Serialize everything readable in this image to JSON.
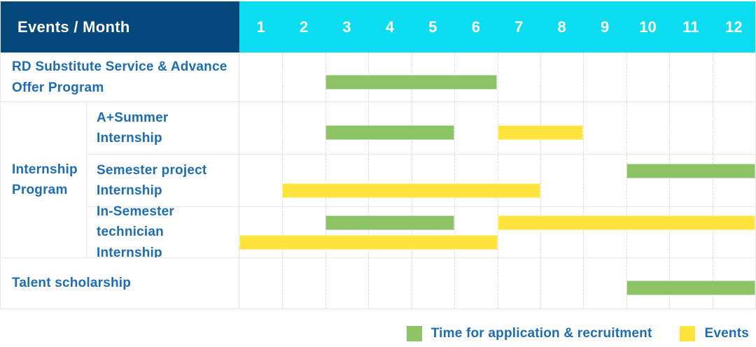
{
  "header": {
    "title": "Events / Month",
    "months": [
      "1",
      "2",
      "3",
      "4",
      "5",
      "6",
      "7",
      "8",
      "9",
      "10",
      "11",
      "12"
    ]
  },
  "colors": {
    "header_bg": "#05497c",
    "months_bg": "#0bdcf0",
    "application": "#8bc366",
    "events": "#ffe43e",
    "label_text": "#1e6cb2"
  },
  "rows": [
    {
      "type": "simple",
      "label": "RD Substitute Service & Advance Offer Program",
      "bars": [
        {
          "kind": "application",
          "start": 3,
          "end": 6,
          "lane": "single"
        }
      ]
    },
    {
      "type": "grouped",
      "group": "Internship Program",
      "children": [
        {
          "label": "A+Summer Internship",
          "bars": [
            {
              "kind": "application",
              "start": 3,
              "end": 5,
              "lane": "single"
            },
            {
              "kind": "events",
              "start": 7,
              "end": 8,
              "lane": "single"
            }
          ]
        },
        {
          "label": "Semester project Internship",
          "bars": [
            {
              "kind": "application",
              "start": 10,
              "end": 12,
              "lane": "top"
            },
            {
              "kind": "events",
              "start": 2,
              "end": 7,
              "lane": "bottom"
            }
          ]
        },
        {
          "label": "In-Semester technician Internship",
          "bars": [
            {
              "kind": "application",
              "start": 3,
              "end": 5,
              "lane": "top"
            },
            {
              "kind": "events",
              "start": 7,
              "end": 12,
              "lane": "top"
            },
            {
              "kind": "events",
              "start": 1,
              "end": 6,
              "lane": "bottom"
            }
          ]
        }
      ]
    },
    {
      "type": "simple",
      "label": "Talent scholarship",
      "bars": [
        {
          "kind": "application",
          "start": 10,
          "end": 12,
          "lane": "single"
        }
      ]
    }
  ],
  "legend": {
    "items": [
      {
        "kind": "application",
        "label": "Time for application & recruitment"
      },
      {
        "kind": "events",
        "label": "Events"
      }
    ]
  },
  "chart_data": {
    "type": "gantt",
    "title": "Events / Month",
    "xlabel": "Month",
    "x_ticks": [
      1,
      2,
      3,
      4,
      5,
      6,
      7,
      8,
      9,
      10,
      11,
      12
    ],
    "x_range": [
      1,
      12
    ],
    "grid": "vertical-dashed",
    "legend_position": "bottom-right",
    "legend": [
      {
        "name": "Time for application & recruitment",
        "color": "#8bc366"
      },
      {
        "name": "Events",
        "color": "#ffe43e"
      }
    ],
    "tasks": [
      {
        "event": "RD Substitute Service & Advance Offer Program",
        "group": null,
        "spans": [
          {
            "category": "Time for application & recruitment",
            "start_month": 3,
            "end_month": 6
          }
        ]
      },
      {
        "event": "A+Summer Internship",
        "group": "Internship Program",
        "spans": [
          {
            "category": "Time for application & recruitment",
            "start_month": 3,
            "end_month": 5
          },
          {
            "category": "Events",
            "start_month": 7,
            "end_month": 8
          }
        ]
      },
      {
        "event": "Semester project Internship",
        "group": "Internship Program",
        "spans": [
          {
            "category": "Time for application & recruitment",
            "start_month": 10,
            "end_month": 12
          },
          {
            "category": "Events",
            "start_month": 2,
            "end_month": 7
          }
        ]
      },
      {
        "event": "In-Semester technician Internship",
        "group": "Internship Program",
        "spans": [
          {
            "category": "Time for application & recruitment",
            "start_month": 3,
            "end_month": 5
          },
          {
            "category": "Events",
            "start_month": 7,
            "end_month": 12
          },
          {
            "category": "Events",
            "start_month": 1,
            "end_month": 6
          }
        ]
      },
      {
        "event": "Talent scholarship",
        "group": null,
        "spans": [
          {
            "category": "Time for application & recruitment",
            "start_month": 10,
            "end_month": 12
          }
        ]
      }
    ]
  }
}
